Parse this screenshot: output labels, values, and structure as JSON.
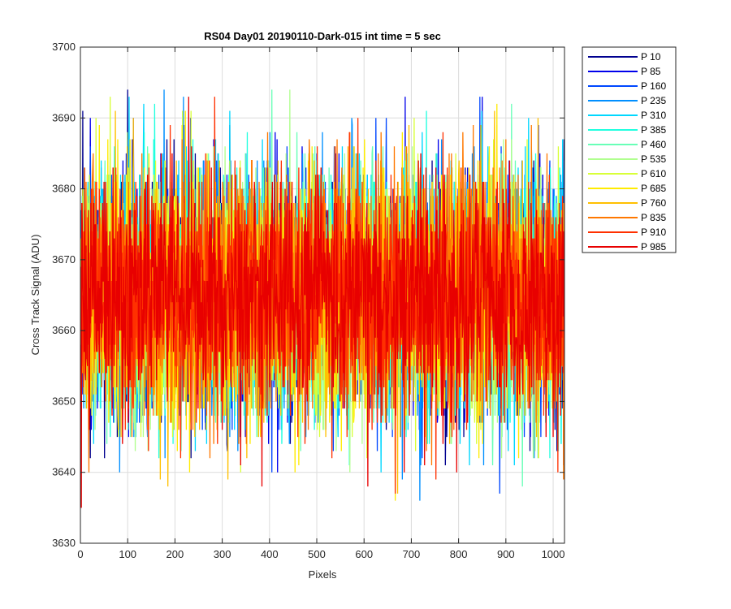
{
  "chart_data": {
    "type": "line",
    "title": "RS04 Day01 20190110-Dark-015 int time = 5 sec",
    "xlabel": "Pixels",
    "ylabel": "Cross Track Signal (ADU)",
    "xlim": [
      0,
      1024
    ],
    "ylim": [
      3630,
      3700
    ],
    "xticks": [
      0,
      100,
      200,
      300,
      400,
      500,
      600,
      700,
      800,
      900,
      1000
    ],
    "yticks": [
      3630,
      3640,
      3650,
      3660,
      3670,
      3680,
      3690,
      3700
    ],
    "grid": true,
    "legend_position": "outside-top-right",
    "series_summary": {
      "points_per_series": 1024,
      "mean": 3665,
      "typical_spread": [
        3648,
        3682
      ],
      "min_observed": 3635,
      "max_observed": 3694
    },
    "series": [
      {
        "name": "P 10",
        "color": "#00008F"
      },
      {
        "name": "P 85",
        "color": "#0000EB"
      },
      {
        "name": "P 160",
        "color": "#0047FF"
      },
      {
        "name": "P 235",
        "color": "#008FFF"
      },
      {
        "name": "P 310",
        "color": "#00D7FF"
      },
      {
        "name": "P 385",
        "color": "#20FFDF"
      },
      {
        "name": "P 460",
        "color": "#68FFB7"
      },
      {
        "name": "P 535",
        "color": "#B0FF8F"
      },
      {
        "name": "P 610",
        "color": "#D8FF38"
      },
      {
        "name": "P 685",
        "color": "#FFEB00"
      },
      {
        "name": "P 760",
        "color": "#FFC000"
      },
      {
        "name": "P 835",
        "color": "#FF7800"
      },
      {
        "name": "P 910",
        "color": "#FF3000"
      },
      {
        "name": "P 985",
        "color": "#E80000"
      }
    ]
  }
}
